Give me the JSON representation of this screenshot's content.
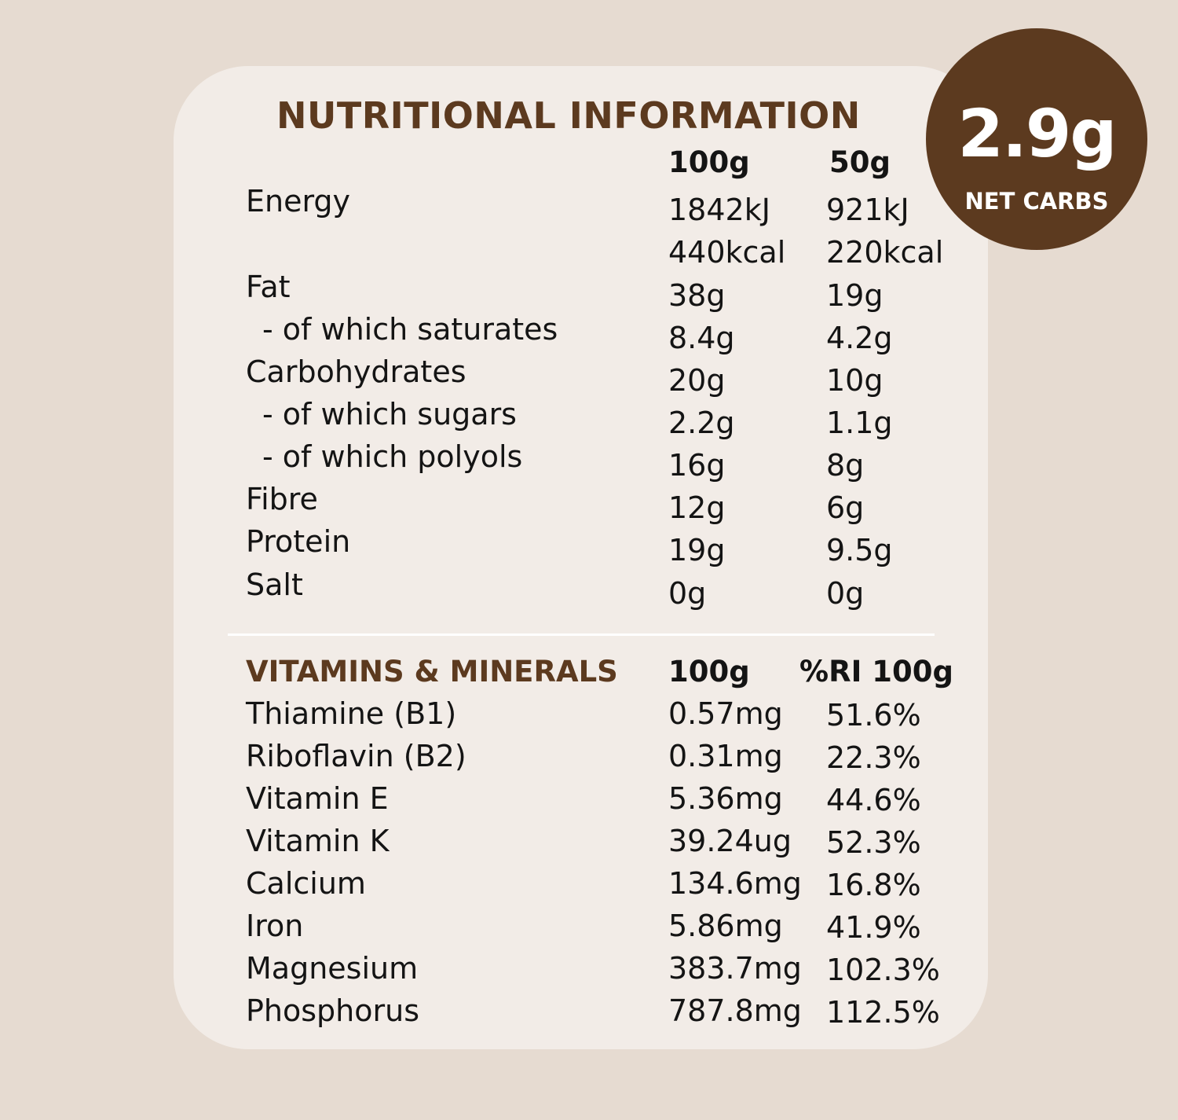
{
  "title": "NUTRITIONAL INFORMATION",
  "badge": {
    "value": "2.9g",
    "label": "NET CARBS"
  },
  "nutrition": {
    "col1_header": "100g",
    "col2_header": "50g",
    "energy_label": "Energy",
    "energy_kj_100": "1842kJ",
    "energy_kj_50": "921kJ",
    "energy_kcal_100": "440kcal",
    "energy_kcal_50": "220kcal",
    "rows": [
      {
        "label": "Fat",
        "v100": "38g",
        "v50": "19g"
      },
      {
        "label": "- of which saturates",
        "v100": "8.4g",
        "v50": "4.2g"
      },
      {
        "label": "Carbohydrates",
        "v100": "20g",
        "v50": "10g"
      },
      {
        "label": "- of which sugars",
        "v100": "2.2g",
        "v50": "1.1g"
      },
      {
        "label": "- of which polyols",
        "v100": "16g",
        "v50": "8g"
      },
      {
        "label": "Fibre",
        "v100": "12g",
        "v50": "6g"
      },
      {
        "label": "Protein",
        "v100": "19g",
        "v50": "9.5g"
      },
      {
        "label": "Salt",
        "v100": "0g",
        "v50": "0g"
      }
    ]
  },
  "vitamins": {
    "section_title": "VITAMINS & MINERALS",
    "col1_header": "100g",
    "col2_header": "%RI 100g",
    "rows": [
      {
        "label": "Thiamine (B1)",
        "v100": "0.57mg",
        "ri": "51.6%"
      },
      {
        "label": "Riboflavin (B2)",
        "v100": "0.31mg",
        "ri": "22.3%"
      },
      {
        "label": "Vitamin E",
        "v100": "5.36mg",
        "ri": "44.6%"
      },
      {
        "label": "Vitamin K",
        "v100": "39.24ug",
        "ri": "52.3%"
      },
      {
        "label": "Calcium",
        "v100": "134.6mg",
        "ri": "16.8%"
      },
      {
        "label": "Iron",
        "v100": "5.86mg",
        "ri": "41.9%"
      },
      {
        "label": "Magnesium",
        "v100": "383.7mg",
        "ri": "102.3%"
      },
      {
        "label": "Phosphorus",
        "v100": "787.8mg",
        "ri": "112.5%"
      }
    ]
  }
}
